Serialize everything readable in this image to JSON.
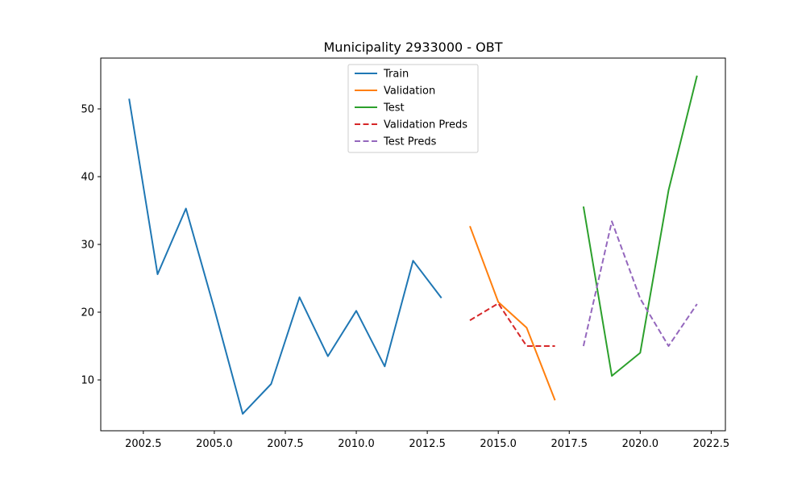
{
  "chart_data": {
    "type": "line",
    "title": "Municipality 2933000 - OBT",
    "xlabel": "",
    "ylabel": "",
    "xlim": [
      2001.0,
      2023.0
    ],
    "ylim": [
      2.5,
      57.5
    ],
    "x_ticks": [
      2002.5,
      2005.0,
      2007.5,
      2010.0,
      2012.5,
      2015.0,
      2017.5,
      2020.0,
      2022.5
    ],
    "x_tick_labels": [
      "2002.5",
      "2005.0",
      "2007.5",
      "2010.0",
      "2012.5",
      "2015.0",
      "2017.5",
      "2020.0",
      "2022.5"
    ],
    "y_ticks": [
      10,
      20,
      30,
      40,
      50
    ],
    "y_tick_labels": [
      "10",
      "20",
      "30",
      "40",
      "50"
    ],
    "grid": false,
    "legend_position": "top-center",
    "series": [
      {
        "name": "Train",
        "color": "#1f77b4",
        "dashed": false,
        "x": [
          2002,
          2003,
          2004,
          2005,
          2006,
          2007,
          2008,
          2009,
          2010,
          2011,
          2012,
          2013
        ],
        "y": [
          51.5,
          25.6,
          35.3,
          20.5,
          5.0,
          9.4,
          22.2,
          13.5,
          20.2,
          12.0,
          27.6,
          22.1
        ]
      },
      {
        "name": "Validation",
        "color": "#ff7f0e",
        "dashed": false,
        "x": [
          2014,
          2015,
          2016,
          2017
        ],
        "y": [
          32.7,
          21.5,
          17.7,
          7.0
        ]
      },
      {
        "name": "Test",
        "color": "#2ca02c",
        "dashed": false,
        "x": [
          2018,
          2019,
          2020,
          2021,
          2022
        ],
        "y": [
          35.6,
          10.6,
          14.0,
          38.0,
          54.9
        ]
      },
      {
        "name": "Validation Preds",
        "color": "#d62728",
        "dashed": true,
        "x": [
          2014,
          2015,
          2016,
          2017
        ],
        "y": [
          18.8,
          21.3,
          15.0,
          15.0
        ]
      },
      {
        "name": "Test Preds",
        "color": "#9467bd",
        "dashed": true,
        "x": [
          2018,
          2019,
          2020,
          2021,
          2022
        ],
        "y": [
          15.0,
          33.4,
          22.0,
          15.0,
          21.2
        ]
      }
    ]
  }
}
